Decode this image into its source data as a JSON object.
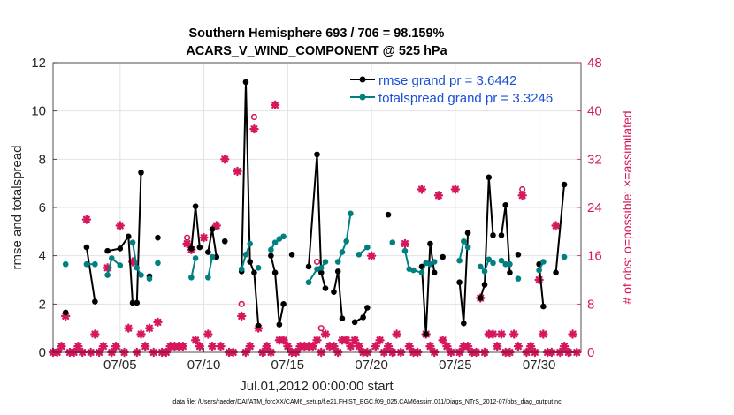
{
  "chart_data": {
    "type": "line",
    "title_line1": "Southern Hemisphere 693 / 706 = 98.159%",
    "title_line2": "ACARS_V_WIND_COMPONENT @ 525 hPa",
    "xlabel": "Jul.01,2012 00:00:00 start",
    "ylabel_left": "rmse and totalspread",
    "ylabel_right": "# of obs: o=possible; ×=assimilated",
    "xlim": [
      1,
      32.5
    ],
    "ylim_left": [
      0,
      12
    ],
    "ylim_right": [
      0,
      48
    ],
    "x_ticks": [
      {
        "day": 5,
        "label": "07/05"
      },
      {
        "day": 10,
        "label": "07/10"
      },
      {
        "day": 15,
        "label": "07/15"
      },
      {
        "day": 20,
        "label": "07/20"
      },
      {
        "day": 25,
        "label": "07/25"
      },
      {
        "day": 30,
        "label": "07/30"
      }
    ],
    "y_ticks_left": [
      "0",
      "2",
      "4",
      "6",
      "8",
      "10",
      "12"
    ],
    "y_ticks_right": [
      "0",
      "8",
      "16",
      "24",
      "32",
      "40",
      "48"
    ],
    "colors": {
      "rmse": "#000000",
      "spread": "#008080",
      "obs": "#d6175e",
      "legend_text": "#1a4fd6"
    },
    "series": [
      {
        "name": "rmse grand pr = 3.6442",
        "key": "rmse",
        "points": [
          [
            1.75,
            1.65
          ],
          [
            2.0,
            null
          ],
          [
            3.0,
            4.35
          ],
          [
            3.5,
            2.1
          ],
          [
            4.0,
            null
          ],
          [
            4.25,
            4.2
          ],
          [
            5.0,
            4.3
          ],
          [
            5.5,
            4.8
          ],
          [
            5.75,
            2.05
          ],
          [
            6.0,
            2.05
          ],
          [
            6.25,
            7.45
          ],
          [
            6.5,
            null
          ],
          [
            6.75,
            3.15
          ],
          [
            7.0,
            null
          ],
          [
            7.25,
            4.75
          ],
          [
            8.0,
            null
          ],
          [
            9.25,
            4.3
          ],
          [
            9.5,
            6.05
          ],
          [
            9.75,
            4.35
          ],
          [
            10.0,
            null
          ],
          [
            10.25,
            4.15
          ],
          [
            10.5,
            5.1
          ],
          [
            10.75,
            3.95
          ],
          [
            11.0,
            null
          ],
          [
            11.25,
            4.6
          ],
          [
            12.0,
            null
          ],
          [
            12.25,
            3.35
          ],
          [
            12.5,
            11.2
          ],
          [
            12.75,
            3.75
          ],
          [
            13.0,
            3.3
          ],
          [
            13.25,
            1.1
          ],
          [
            13.5,
            null
          ],
          [
            14.0,
            4.0
          ],
          [
            14.25,
            3.3
          ],
          [
            14.5,
            1.15
          ],
          [
            14.75,
            2.0
          ],
          [
            15.0,
            null
          ],
          [
            15.25,
            4.05
          ],
          [
            15.5,
            null
          ],
          [
            16.25,
            3.55
          ],
          [
            16.75,
            8.2
          ],
          [
            17.0,
            3.3
          ],
          [
            17.25,
            2.65
          ],
          [
            17.5,
            null
          ],
          [
            17.75,
            2.5
          ],
          [
            18.0,
            3.35
          ],
          [
            18.25,
            1.4
          ],
          [
            18.5,
            null
          ],
          [
            19.0,
            1.25
          ],
          [
            19.5,
            1.45
          ],
          [
            19.75,
            1.85
          ],
          [
            20.0,
            null
          ],
          [
            21.0,
            5.7
          ],
          [
            21.5,
            null
          ],
          [
            23.0,
            3.55
          ],
          [
            23.25,
            0.75
          ],
          [
            23.5,
            4.5
          ],
          [
            23.75,
            3.3
          ],
          [
            24.0,
            null
          ],
          [
            24.25,
            3.95
          ],
          [
            25.0,
            null
          ],
          [
            25.25,
            2.9
          ],
          [
            25.5,
            1.2
          ],
          [
            25.75,
            4.95
          ],
          [
            26.0,
            null
          ],
          [
            26.5,
            2.25
          ],
          [
            26.75,
            2.8
          ],
          [
            27.0,
            7.25
          ],
          [
            27.25,
            4.85
          ],
          [
            27.5,
            null
          ],
          [
            27.75,
            4.85
          ],
          [
            28.0,
            6.1
          ],
          [
            28.25,
            3.3
          ],
          [
            28.5,
            null
          ],
          [
            28.75,
            4.05
          ],
          [
            29.0,
            null
          ],
          [
            30.0,
            3.65
          ],
          [
            30.25,
            1.9
          ],
          [
            30.5,
            null
          ],
          [
            31.0,
            3.3
          ],
          [
            31.5,
            6.95
          ]
        ]
      },
      {
        "name": "totalspread grand pr = 3.3246",
        "key": "spread",
        "points": [
          [
            1.75,
            3.65
          ],
          [
            2.5,
            null
          ],
          [
            3.0,
            3.65
          ],
          [
            3.5,
            3.65
          ],
          [
            4.0,
            null
          ],
          [
            4.25,
            3.2
          ],
          [
            4.5,
            3.9
          ],
          [
            5.0,
            3.6
          ],
          [
            5.5,
            null
          ],
          [
            5.75,
            4.55
          ],
          [
            6.0,
            3.5
          ],
          [
            6.25,
            3.2
          ],
          [
            6.5,
            null
          ],
          [
            6.75,
            3.05
          ],
          [
            7.0,
            null
          ],
          [
            7.25,
            3.7
          ],
          [
            7.5,
            null
          ],
          [
            9.25,
            3.1
          ],
          [
            9.5,
            3.9
          ],
          [
            10.0,
            null
          ],
          [
            10.25,
            3.1
          ],
          [
            10.5,
            3.95
          ],
          [
            11.0,
            null
          ],
          [
            12.25,
            3.45
          ],
          [
            12.5,
            4.05
          ],
          [
            12.75,
            4.5
          ],
          [
            13.0,
            null
          ],
          [
            13.25,
            3.5
          ],
          [
            13.5,
            null
          ],
          [
            14.0,
            4.25
          ],
          [
            14.25,
            4.55
          ],
          [
            14.5,
            4.7
          ],
          [
            14.75,
            4.8
          ],
          [
            15.0,
            null
          ],
          [
            16.25,
            2.9
          ],
          [
            16.75,
            3.45
          ],
          [
            17.0,
            3.5
          ],
          [
            17.25,
            3.75
          ],
          [
            17.5,
            null
          ],
          [
            18.0,
            3.75
          ],
          [
            18.25,
            4.15
          ],
          [
            18.5,
            4.6
          ],
          [
            18.75,
            5.75
          ],
          [
            19.0,
            null
          ],
          [
            19.25,
            4.05
          ],
          [
            19.75,
            4.35
          ],
          [
            20.0,
            null
          ],
          [
            21.25,
            4.55
          ],
          [
            21.5,
            null
          ],
          [
            22.0,
            4.2
          ],
          [
            22.25,
            3.45
          ],
          [
            22.5,
            3.4
          ],
          [
            23.0,
            3.3
          ],
          [
            23.25,
            3.7
          ],
          [
            23.5,
            3.65
          ],
          [
            23.75,
            3.75
          ],
          [
            24.0,
            null
          ],
          [
            25.25,
            3.8
          ],
          [
            25.5,
            4.6
          ],
          [
            25.75,
            4.35
          ],
          [
            26.0,
            null
          ],
          [
            26.5,
            3.55
          ],
          [
            26.75,
            3.35
          ],
          [
            27.0,
            3.85
          ],
          [
            27.25,
            3.7
          ],
          [
            27.5,
            null
          ],
          [
            27.75,
            3.8
          ],
          [
            28.0,
            3.65
          ],
          [
            28.25,
            3.65
          ],
          [
            28.5,
            null
          ],
          [
            28.75,
            3.05
          ],
          [
            29.0,
            null
          ],
          [
            30.0,
            3.4
          ],
          [
            30.25,
            3.75
          ],
          [
            30.5,
            null
          ],
          [
            31.5,
            3.95
          ]
        ]
      }
    ],
    "obs_assimilated": [
      [
        1.0,
        0.0
      ],
      [
        1.25,
        0.0
      ],
      [
        1.5,
        1.0
      ],
      [
        1.75,
        6.0
      ],
      [
        2.0,
        0.0
      ],
      [
        2.25,
        0.0
      ],
      [
        2.5,
        1.0
      ],
      [
        2.75,
        0.0
      ],
      [
        3.0,
        22.0
      ],
      [
        3.25,
        0.0
      ],
      [
        3.5,
        3.0
      ],
      [
        3.75,
        0.0
      ],
      [
        4.0,
        1.0
      ],
      [
        4.25,
        14.0
      ],
      [
        4.5,
        0.0
      ],
      [
        4.75,
        1.0
      ],
      [
        5.0,
        21.0
      ],
      [
        5.25,
        0.0
      ],
      [
        5.5,
        4.0
      ],
      [
        5.75,
        15.0
      ],
      [
        6.0,
        0.0
      ],
      [
        6.25,
        3.0
      ],
      [
        6.5,
        1.0
      ],
      [
        6.75,
        4.0
      ],
      [
        7.0,
        0.0
      ],
      [
        7.25,
        5.0
      ],
      [
        7.5,
        0.0
      ],
      [
        7.75,
        0.0
      ],
      [
        8.0,
        1.0
      ],
      [
        8.25,
        1.0
      ],
      [
        8.5,
        1.0
      ],
      [
        8.75,
        1.0
      ],
      [
        9.0,
        18.0
      ],
      [
        9.25,
        17.0
      ],
      [
        9.5,
        2.0
      ],
      [
        9.75,
        1.0
      ],
      [
        10.0,
        19.0
      ],
      [
        10.25,
        3.0
      ],
      [
        10.5,
        1.0
      ],
      [
        10.75,
        21.0
      ],
      [
        11.0,
        1.0
      ],
      [
        11.25,
        32.0
      ],
      [
        11.5,
        0.0
      ],
      [
        11.75,
        0.0
      ],
      [
        12.0,
        30.0
      ],
      [
        12.25,
        6.0
      ],
      [
        12.5,
        0.0
      ],
      [
        12.75,
        1.0
      ],
      [
        13.0,
        37.0
      ],
      [
        13.25,
        4.0
      ],
      [
        13.5,
        0.0
      ],
      [
        13.75,
        1.0
      ],
      [
        14.0,
        0.0
      ],
      [
        14.25,
        41.0
      ],
      [
        14.5,
        2.0
      ],
      [
        14.75,
        2.0
      ],
      [
        15.0,
        1.0
      ],
      [
        15.25,
        0.0
      ],
      [
        15.5,
        0.0
      ],
      [
        15.75,
        1.0
      ],
      [
        16.0,
        1.0
      ],
      [
        16.25,
        1.0
      ],
      [
        16.5,
        1.0
      ],
      [
        16.75,
        2.0
      ],
      [
        17.0,
        0.0
      ],
      [
        17.25,
        3.0
      ],
      [
        17.5,
        1.0
      ],
      [
        17.75,
        1.0
      ],
      [
        18.0,
        0.0
      ],
      [
        18.25,
        2.0
      ],
      [
        18.5,
        2.0
      ],
      [
        18.75,
        1.0
      ],
      [
        19.0,
        2.0
      ],
      [
        19.25,
        1.0
      ],
      [
        19.5,
        0.0
      ],
      [
        19.75,
        0.0
      ],
      [
        20.0,
        16.0
      ],
      [
        20.25,
        1.0
      ],
      [
        20.5,
        2.0
      ],
      [
        20.75,
        0.0
      ],
      [
        21.0,
        1.0
      ],
      [
        21.25,
        0.0
      ],
      [
        21.5,
        3.0
      ],
      [
        21.75,
        0.0
      ],
      [
        22.0,
        18.0
      ],
      [
        22.25,
        1.0
      ],
      [
        22.5,
        0.0
      ],
      [
        22.75,
        0.0
      ],
      [
        23.0,
        27.0
      ],
      [
        23.25,
        3.0
      ],
      [
        23.5,
        1.0
      ],
      [
        23.75,
        0.0
      ],
      [
        24.0,
        26.0
      ],
      [
        24.25,
        2.0
      ],
      [
        24.5,
        1.0
      ],
      [
        24.75,
        0.0
      ],
      [
        25.0,
        27.0
      ],
      [
        25.25,
        0.0
      ],
      [
        25.5,
        1.0
      ],
      [
        25.75,
        1.0
      ],
      [
        26.0,
        0.0
      ],
      [
        26.25,
        0.0
      ],
      [
        26.5,
        9.0
      ],
      [
        26.75,
        0.0
      ],
      [
        27.0,
        3.0
      ],
      [
        27.25,
        3.0
      ],
      [
        27.5,
        1.0
      ],
      [
        27.75,
        3.0
      ],
      [
        28.0,
        0.0
      ],
      [
        28.25,
        0.0
      ],
      [
        28.5,
        3.0
      ],
      [
        28.75,
        1.0
      ],
      [
        29.0,
        26.0
      ],
      [
        29.25,
        0.0
      ],
      [
        29.5,
        1.0
      ],
      [
        29.75,
        0.0
      ],
      [
        30.0,
        12.0
      ],
      [
        30.25,
        3.0
      ],
      [
        30.5,
        0.0
      ],
      [
        30.75,
        0.0
      ],
      [
        31.0,
        21.0
      ],
      [
        31.25,
        0.0
      ],
      [
        31.5,
        1.0
      ],
      [
        31.75,
        0.0
      ],
      [
        32.0,
        3.0
      ],
      [
        32.25,
        0.0
      ]
    ],
    "obs_possible": [
      [
        9.0,
        19.0
      ],
      [
        12.25,
        8.0
      ],
      [
        13.0,
        39.0
      ],
      [
        16.75,
        15.0
      ],
      [
        17.0,
        4.0
      ],
      [
        29.0,
        27.0
      ]
    ]
  },
  "footer": {
    "data_file": "data file: /Users/raeder/DAI/ATM_forcXX/CAM6_setup/f.e21.FHIST_BGC.f09_025.CAM6assim.011/Diags_NTrS_2012-07/obs_diag_output.nc"
  }
}
